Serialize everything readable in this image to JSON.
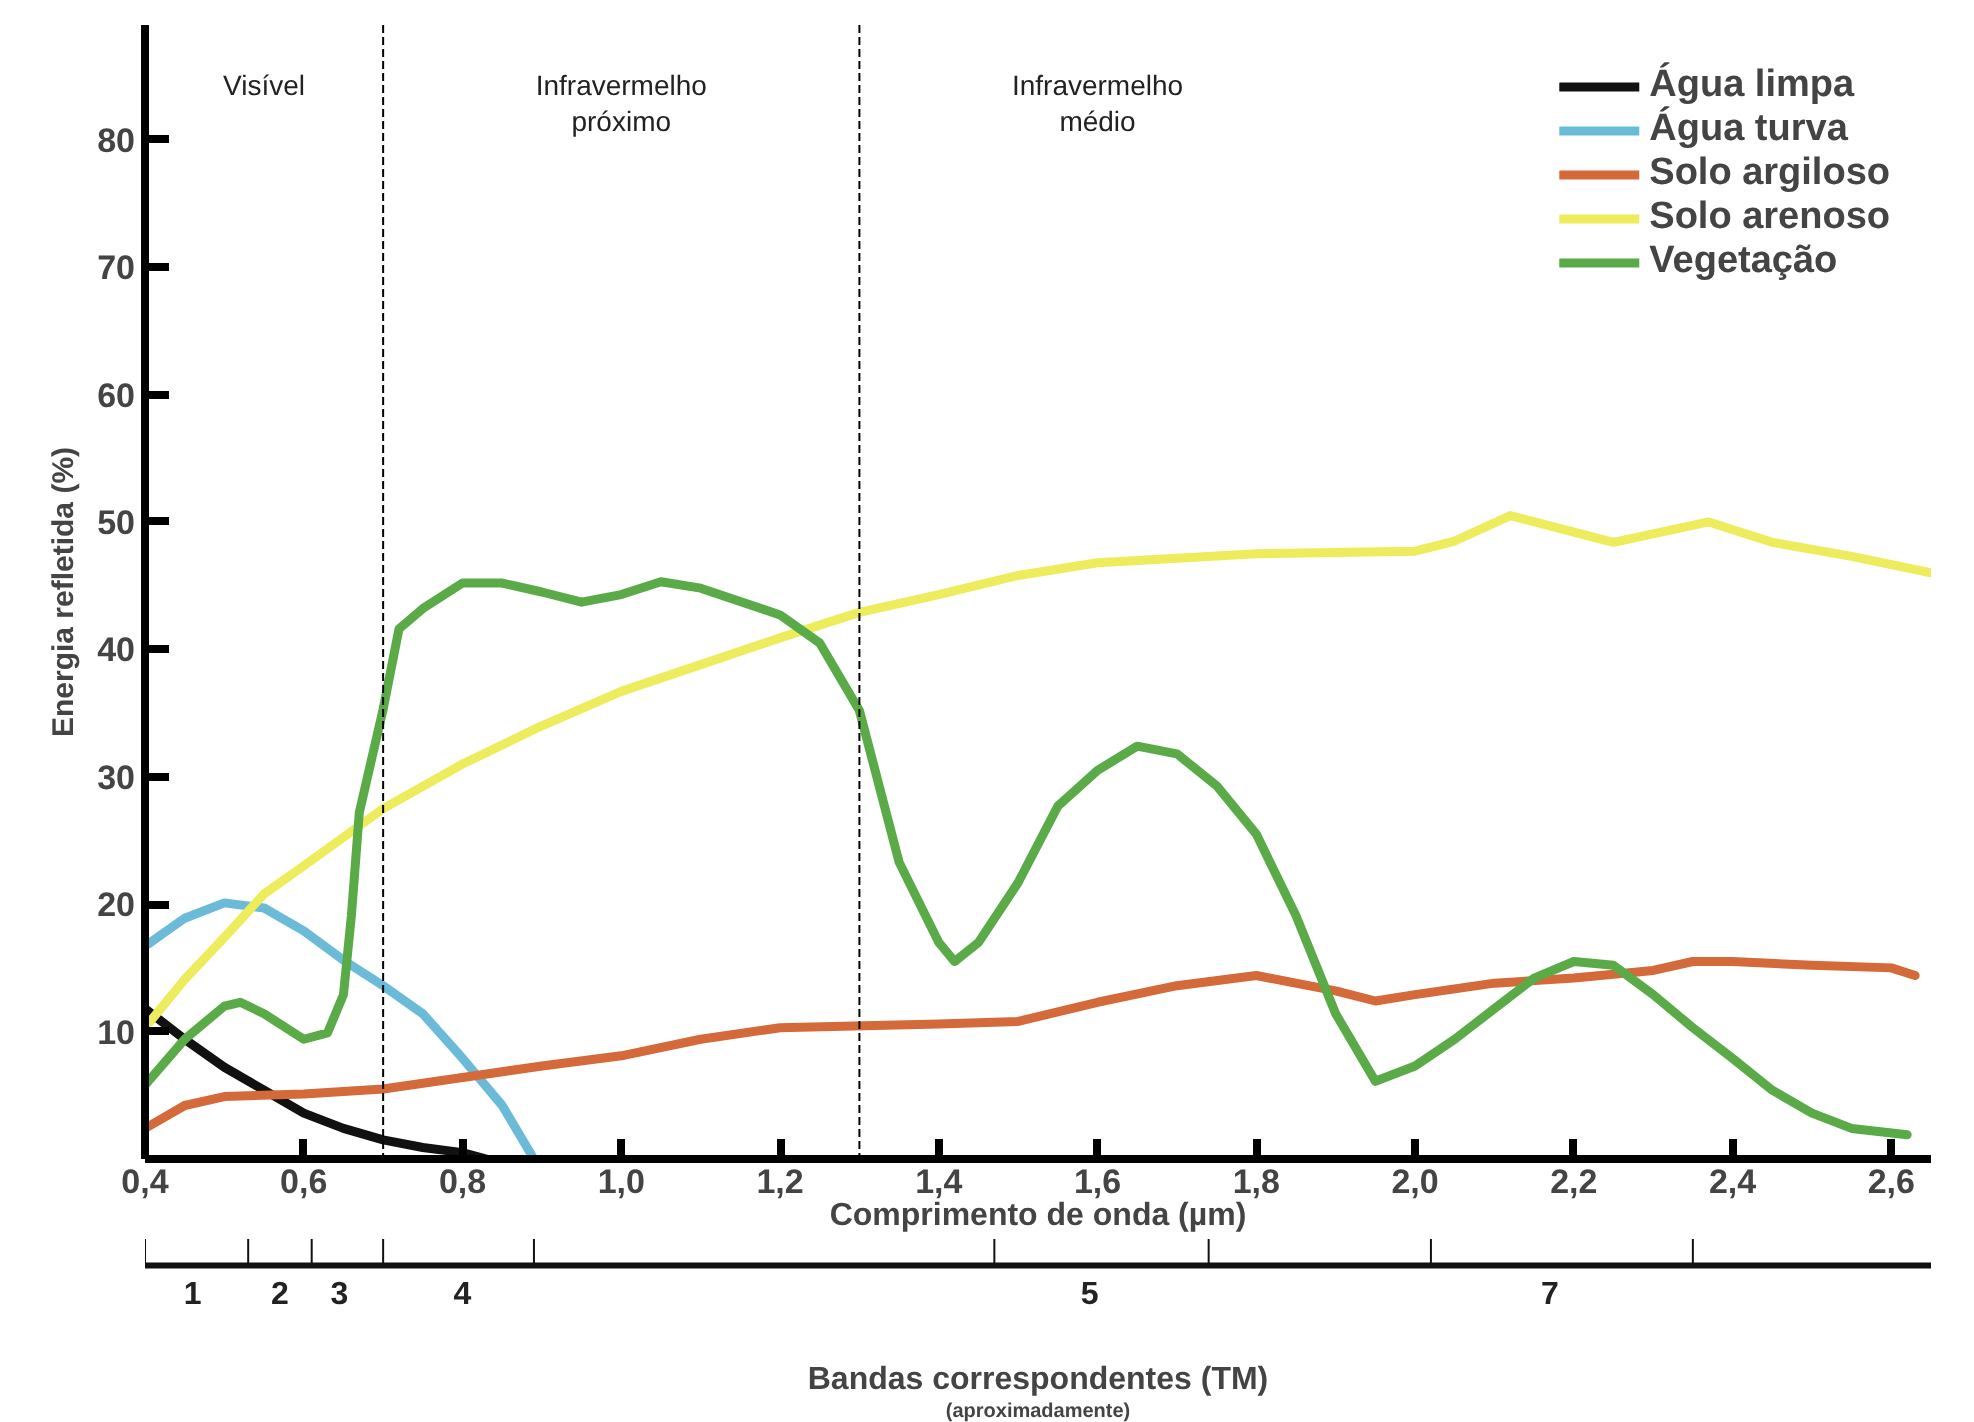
{
  "chart_data": {
    "type": "line",
    "xlabel": "Comprimento de onda (µm)",
    "ylabel": "Energia refletida (%)",
    "xlim": [
      0.4,
      2.65
    ],
    "ylim": [
      0,
      89
    ],
    "xticks": [
      {
        "value": 0.4,
        "label": "0,4"
      },
      {
        "value": 0.6,
        "label": "0,6"
      },
      {
        "value": 0.8,
        "label": "0,8"
      },
      {
        "value": 1.0,
        "label": "1,0"
      },
      {
        "value": 1.2,
        "label": "1,2"
      },
      {
        "value": 1.4,
        "label": "1,4"
      },
      {
        "value": 1.6,
        "label": "1,6"
      },
      {
        "value": 1.8,
        "label": "1,8"
      },
      {
        "value": 2.0,
        "label": "2,0"
      },
      {
        "value": 2.2,
        "label": "2,2"
      },
      {
        "value": 2.4,
        "label": "2,4"
      },
      {
        "value": 2.6,
        "label": "2,6"
      }
    ],
    "yticks": [
      10,
      20,
      30,
      40,
      50,
      60,
      70,
      80
    ],
    "series": [
      {
        "name": "Água limpa",
        "color": "#111111",
        "x": [
          0.4,
          0.45,
          0.5,
          0.55,
          0.6,
          0.65,
          0.7,
          0.75,
          0.8,
          0.83
        ],
        "values": [
          11.8,
          9.4,
          7.2,
          5.4,
          3.6,
          2.4,
          1.5,
          0.9,
          0.5,
          0
        ]
      },
      {
        "name": "Água turva",
        "color": "#6bbbd8",
        "x": [
          0.4,
          0.45,
          0.5,
          0.55,
          0.6,
          0.65,
          0.7,
          0.75,
          0.8,
          0.85,
          0.89
        ],
        "values": [
          16.7,
          18.9,
          20.1,
          19.7,
          17.9,
          15.6,
          13.6,
          11.4,
          7.9,
          4.2,
          0
        ]
      },
      {
        "name": "Solo argiloso",
        "color": "#d4693a",
        "x": [
          0.4,
          0.45,
          0.5,
          0.6,
          0.7,
          0.8,
          0.9,
          1.0,
          1.1,
          1.2,
          1.4,
          1.5,
          1.6,
          1.7,
          1.8,
          1.9,
          1.95,
          2.0,
          2.1,
          2.2,
          2.3,
          2.35,
          2.4,
          2.5,
          2.6,
          2.63
        ],
        "values": [
          2.4,
          4.2,
          4.9,
          5.1,
          5.5,
          6.4,
          7.3,
          8.1,
          9.4,
          10.3,
          10.6,
          10.8,
          12.3,
          13.6,
          14.4,
          13.2,
          12.4,
          12.9,
          13.8,
          14.2,
          14.8,
          15.5,
          15.5,
          15.2,
          15.0,
          14.4
        ]
      },
      {
        "name": "Solo arenoso",
        "color": "#ecec5c",
        "x": [
          0.4,
          0.45,
          0.5,
          0.55,
          0.6,
          0.7,
          0.8,
          0.9,
          1.0,
          1.1,
          1.2,
          1.3,
          1.4,
          1.5,
          1.6,
          1.8,
          2.0,
          2.05,
          2.12,
          2.2,
          2.25,
          2.37,
          2.45,
          2.55,
          2.65
        ],
        "values": [
          10.3,
          14.1,
          17.4,
          20.8,
          23.0,
          27.5,
          31.0,
          34.0,
          36.7,
          38.8,
          40.9,
          42.9,
          44.3,
          45.8,
          46.8,
          47.5,
          47.7,
          48.5,
          50.5,
          49.2,
          48.4,
          50.0,
          48.4,
          47.3,
          46.0
        ]
      },
      {
        "name": "Vegetação",
        "color": "#5aab48",
        "x": [
          0.4,
          0.45,
          0.5,
          0.52,
          0.55,
          0.6,
          0.63,
          0.65,
          0.66,
          0.67,
          0.7,
          0.72,
          0.75,
          0.8,
          0.85,
          0.9,
          0.95,
          1.0,
          1.05,
          1.1,
          1.2,
          1.25,
          1.3,
          1.35,
          1.4,
          1.42,
          1.45,
          1.5,
          1.55,
          1.6,
          1.65,
          1.7,
          1.75,
          1.8,
          1.85,
          1.9,
          1.95,
          2.0,
          2.05,
          2.1,
          2.15,
          2.2,
          2.25,
          2.3,
          2.35,
          2.4,
          2.45,
          2.5,
          2.55,
          2.62
        ],
        "values": [
          5.8,
          9.4,
          12.0,
          12.3,
          11.4,
          9.4,
          9.9,
          12.9,
          19.1,
          27.2,
          35.3,
          41.6,
          43.2,
          45.2,
          45.2,
          44.5,
          43.7,
          44.3,
          45.3,
          44.8,
          42.7,
          40.5,
          35.2,
          23.3,
          17.0,
          15.5,
          17.0,
          21.7,
          27.7,
          30.5,
          32.4,
          31.8,
          29.3,
          25.5,
          19.1,
          11.4,
          6.1,
          7.3,
          9.4,
          11.8,
          14.2,
          15.5,
          15.2,
          12.9,
          10.3,
          7.9,
          5.4,
          3.6,
          2.4,
          1.9
        ]
      }
    ],
    "ref_lines": [
      {
        "axis": "x",
        "value": 0.7,
        "label": null,
        "color": "#000000",
        "line_style": "dashed"
      },
      {
        "axis": "x",
        "value": 1.3,
        "label": null,
        "color": "#000000",
        "line_style": "dashed"
      }
    ],
    "annotations": [
      "Visível",
      "Infravermelho\npróximo",
      "Infravermelho\nmédio",
      "1",
      "2",
      "3",
      "4",
      "5",
      "7",
      "Bandas correspondentes (TM)",
      "(aproximadamente)"
    ],
    "legend": "top right",
    "grid": false,
    "marker": "none",
    "line_style": "solid"
  }
}
